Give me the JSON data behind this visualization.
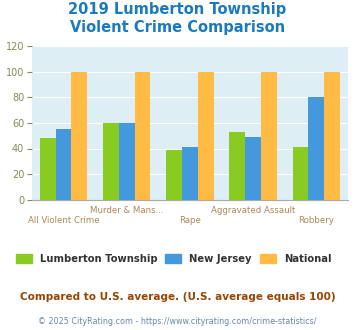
{
  "title": "2019 Lumberton Township\nViolent Crime Comparison",
  "title_color": "#1a7abf",
  "title_fontsize": 10.5,
  "cat_labels_top": [
    "",
    "Murder & Mans...",
    "",
    "Aggravated Assault",
    ""
  ],
  "cat_labels_bot": [
    "All Violent Crime",
    "",
    "Rape",
    "",
    "Robbery"
  ],
  "lumberton": [
    48,
    60,
    39,
    53,
    41
  ],
  "nj": [
    55,
    60,
    41,
    49,
    80
  ],
  "national": [
    100,
    100,
    100,
    100,
    100
  ],
  "lumberton_color": "#88cc22",
  "nj_color": "#4499dd",
  "national_color": "#ffbb44",
  "ylim": [
    0,
    120
  ],
  "yticks": [
    0,
    20,
    40,
    60,
    80,
    100,
    120
  ],
  "bar_width": 0.25,
  "bg_color": "#ddeef5",
  "legend_labels": [
    "Lumberton Township",
    "New Jersey",
    "National"
  ],
  "footnote": "Compared to U.S. average. (U.S. average equals 100)",
  "footnote2": "© 2025 CityRating.com - https://www.cityrating.com/crime-statistics/",
  "footnote_color": "#994400",
  "footnote2_color": "#6688aa",
  "xlabel_top_color": "#aa8855",
  "xlabel_bot_color": "#aa8855"
}
